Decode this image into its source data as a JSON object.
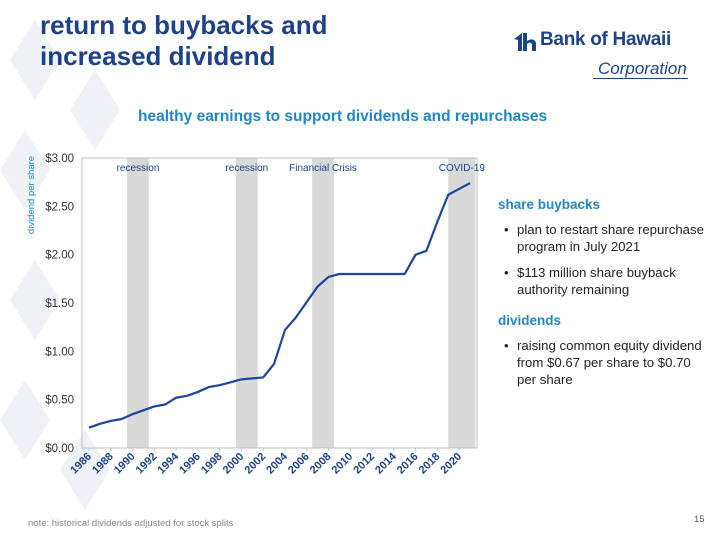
{
  "slide": {
    "title_line1": "return to buybacks and",
    "title_line2": "increased dividend",
    "subtitle": "healthy earnings to support dividends and repurchases",
    "note": "note: historical dividends adjusted for stock splits",
    "page_number": "15"
  },
  "logo": {
    "name": "Bank of Hawaii",
    "sub": "Corporation",
    "icon": "bank-of-hawaii-mark-icon"
  },
  "colors": {
    "title": "#1d4289",
    "accent": "#1f87c7",
    "line": "#1a46a0",
    "band": "#d9d9d9"
  },
  "sidebar": {
    "buybacks_heading": "share buybacks",
    "buybacks_items": [
      "plan to restart share repurchase program in July 2021",
      "$113 million share buyback authority remaining"
    ],
    "dividends_heading": "dividends",
    "dividends_items": [
      "raising common equity dividend from $0.67 per share to $0.70 per share"
    ]
  },
  "chart_data": {
    "type": "line",
    "title": "",
    "xlabel": "",
    "ylabel": "dividend per share",
    "ylim": [
      0,
      3
    ],
    "y_ticks": [
      "$0.00",
      "$0.50",
      "$1.00",
      "$1.50",
      "$2.00",
      "$2.50",
      "$3.00"
    ],
    "x_tick_labels": [
      "1986",
      "1988",
      "1990",
      "1992",
      "1994",
      "1996",
      "1998",
      "2000",
      "2002",
      "2004",
      "2006",
      "2008",
      "2010",
      "2012",
      "2014",
      "2016",
      "2018",
      "2020"
    ],
    "grid": false,
    "series": [
      {
        "x": [
          1986,
          1987,
          1988,
          1989,
          1990,
          1991,
          1992,
          1993,
          1994,
          1995,
          1996,
          1997,
          1998,
          1999,
          2000,
          2001,
          2002,
          2003,
          2004,
          2005,
          2006,
          2007,
          2008,
          2009,
          2010,
          2011,
          2012,
          2013,
          2014,
          2015,
          2016,
          2017,
          2018,
          2019,
          2020,
          2021
        ],
        "values": [
          0.21,
          0.25,
          0.28,
          0.3,
          0.35,
          0.39,
          0.43,
          0.45,
          0.52,
          0.54,
          0.58,
          0.63,
          0.65,
          0.68,
          0.71,
          0.72,
          0.73,
          0.87,
          1.22,
          1.35,
          1.51,
          1.67,
          1.77,
          1.8,
          1.8,
          1.8,
          1.8,
          1.8,
          1.8,
          1.8,
          2.0,
          2.04,
          2.34,
          2.62,
          2.68,
          2.74
        ]
      }
    ],
    "shaded_periods": [
      {
        "label": "recession",
        "start": 1990,
        "end": 1991
      },
      {
        "label": "recession",
        "start": 2000,
        "end": 2001
      },
      {
        "label": "Financial Crisis",
        "start": 2007,
        "end": 2008
      },
      {
        "label": "COVID-19",
        "start": 2019.5,
        "end": 2021
      }
    ]
  }
}
